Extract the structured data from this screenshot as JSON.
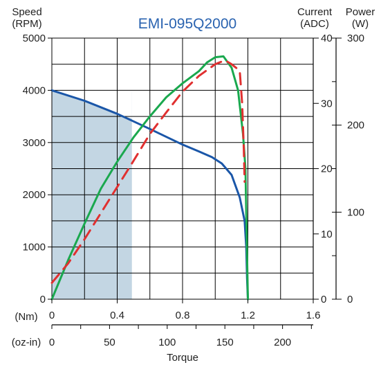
{
  "chart_data": {
    "type": "line",
    "title": "EMI-095Q2000",
    "xlabel": "Torque",
    "x_axes": [
      {
        "unit_label": "(Nm)",
        "range": [
          0,
          1.6
        ],
        "ticks": [
          "0",
          "0.4",
          "0.8",
          "1.2",
          "1.6"
        ]
      },
      {
        "unit_label": "(oz-in)",
        "range": [
          0,
          226.6
        ],
        "ticks": [
          "0",
          "50",
          "100",
          "150",
          "200"
        ]
      }
    ],
    "y_axes": [
      {
        "label_line1": "Speed",
        "label_line2": "(RPM)",
        "range": [
          0,
          5000
        ],
        "ticks": [
          "0",
          "1000",
          "2000",
          "3000",
          "4000",
          "5000"
        ]
      },
      {
        "label_line1": "Current",
        "label_line2": "(ADC)",
        "range": [
          0,
          40
        ],
        "ticks": [
          "0",
          "10",
          "20",
          "30",
          "40"
        ]
      },
      {
        "label_line1": "Power",
        "label_line2": "(W)",
        "range": [
          0,
          300
        ],
        "ticks": [
          "0",
          "100",
          "200",
          "300"
        ]
      }
    ],
    "grid": true,
    "continuous_region": {
      "torque_max_nm": 0.49,
      "speed_rpm": [
        [
          0,
          4000
        ],
        [
          0.2,
          3800
        ],
        [
          0.4,
          3550
        ],
        [
          0.49,
          3460
        ]
      ],
      "color": "#c3d6e3"
    },
    "series": [
      {
        "axis": "speed",
        "color": "#1a56a8",
        "dash": false,
        "points": [
          [
            0,
            4000
          ],
          [
            0.2,
            3800
          ],
          [
            0.4,
            3550
          ],
          [
            0.6,
            3260
          ],
          [
            0.8,
            2960
          ],
          [
            0.9,
            2830
          ],
          [
            0.98,
            2720
          ],
          [
            1.04,
            2600
          ],
          [
            1.1,
            2380
          ],
          [
            1.15,
            1950
          ],
          [
            1.18,
            1500
          ],
          [
            1.19,
            1000
          ],
          [
            1.195,
            400
          ],
          [
            1.2,
            0
          ]
        ]
      },
      {
        "axis": "power",
        "color": "#1aa84e",
        "dash": false,
        "points": [
          [
            0,
            0
          ],
          [
            0.1,
            45
          ],
          [
            0.2,
            87
          ],
          [
            0.3,
            127
          ],
          [
            0.4,
            158
          ],
          [
            0.5,
            186
          ],
          [
            0.6,
            210
          ],
          [
            0.7,
            232
          ],
          [
            0.8,
            248
          ],
          [
            0.9,
            262
          ],
          [
            0.95,
            272
          ],
          [
            1.0,
            278
          ],
          [
            1.05,
            279
          ],
          [
            1.1,
            266
          ],
          [
            1.14,
            240
          ],
          [
            1.17,
            190
          ],
          [
            1.185,
            150
          ],
          [
            1.19,
            100
          ],
          [
            1.195,
            50
          ],
          [
            1.2,
            0
          ]
        ]
      },
      {
        "axis": "current",
        "color": "#e03030",
        "dash": true,
        "points": [
          [
            0,
            2.5
          ],
          [
            0.1,
            5.5
          ],
          [
            0.2,
            9.2
          ],
          [
            0.3,
            13.2
          ],
          [
            0.4,
            17.2
          ],
          [
            0.5,
            21.2
          ],
          [
            0.6,
            25.3
          ],
          [
            0.7,
            28.6
          ],
          [
            0.8,
            31.8
          ],
          [
            0.9,
            34.2
          ],
          [
            1.0,
            36.0
          ],
          [
            1.06,
            36.6
          ],
          [
            1.1,
            36.0
          ],
          [
            1.15,
            35.0
          ],
          [
            1.165,
            30
          ],
          [
            1.175,
            23
          ],
          [
            1.18,
            18
          ]
        ]
      }
    ]
  }
}
